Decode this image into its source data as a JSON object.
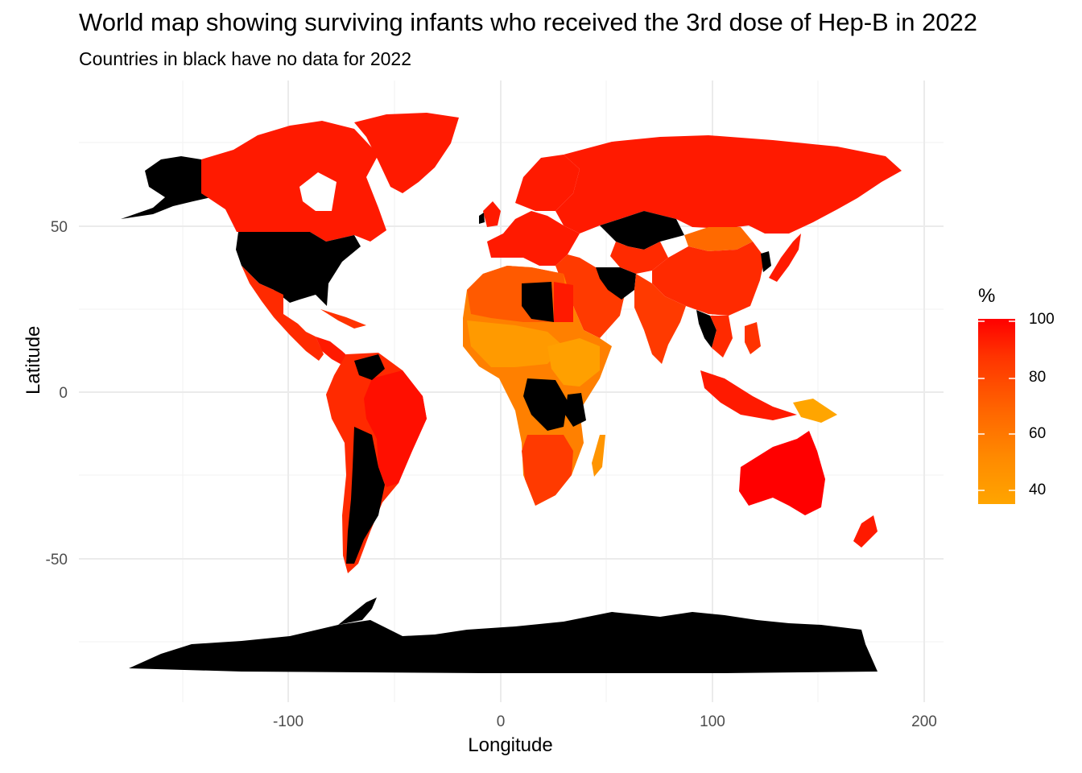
{
  "title": "World map showing surviving infants who received the 3rd dose of Hep-B in 2022",
  "subtitle": "Countries in black have no data for 2022",
  "axes": {
    "xlabel": "Longitude",
    "ylabel": "Latitude",
    "x_ticks": [
      "-100",
      "0",
      "100",
      "200"
    ],
    "y_ticks": [
      "50",
      "0",
      "-50"
    ]
  },
  "legend": {
    "title": "%",
    "labels": [
      "100",
      "80",
      "60",
      "40"
    ],
    "low_color": "#ffa500",
    "high_color": "#ff0000",
    "no_data_color": "#000000"
  },
  "chart_data": {
    "type": "choropleth",
    "title": "World map showing surviving infants who received the 3rd dose of Hep-B in 2022",
    "subtitle": "Countries in black have no data for 2022",
    "xlabel": "Longitude",
    "ylabel": "Latitude",
    "xlim": [
      -190,
      200
    ],
    "ylim": [
      -90,
      85
    ],
    "color_scale": {
      "min": 35,
      "max": 100,
      "low": "#ffa500",
      "high": "#ff0000"
    },
    "grid": true,
    "legend_position": "right",
    "no_data": [
      "United States",
      "Alaska",
      "Libya",
      "Dem. Rep. Congo",
      "Tanzania",
      "Kazakhstan",
      "Iran",
      "Chile",
      "Argentina",
      "Venezuela",
      "Thailand",
      "Antarctica"
    ]
  }
}
